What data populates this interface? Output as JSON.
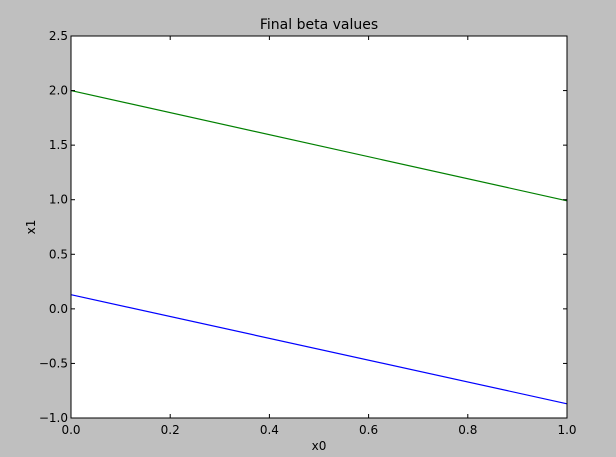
{
  "chart_data": {
    "type": "line",
    "title": "Final beta values",
    "xlabel": "x0",
    "ylabel": "x1",
    "xlim": [
      0.0,
      1.0
    ],
    "ylim": [
      -1.0,
      2.5
    ],
    "xticks": [
      "0.0",
      "0.2",
      "0.4",
      "0.6",
      "0.8",
      "1.0"
    ],
    "yticks": [
      "−1.0",
      "−0.5",
      "0.0",
      "0.5",
      "1.0",
      "1.5",
      "2.0",
      "2.5"
    ],
    "grid": false,
    "legend": "none",
    "series": [
      {
        "x": [
          0.0,
          1.0
        ],
        "values": [
          0.13,
          -0.87
        ],
        "color": "#0000ff"
      },
      {
        "x": [
          0.0,
          1.0
        ],
        "values": [
          2.0,
          0.99
        ],
        "color": "#008000"
      }
    ]
  }
}
